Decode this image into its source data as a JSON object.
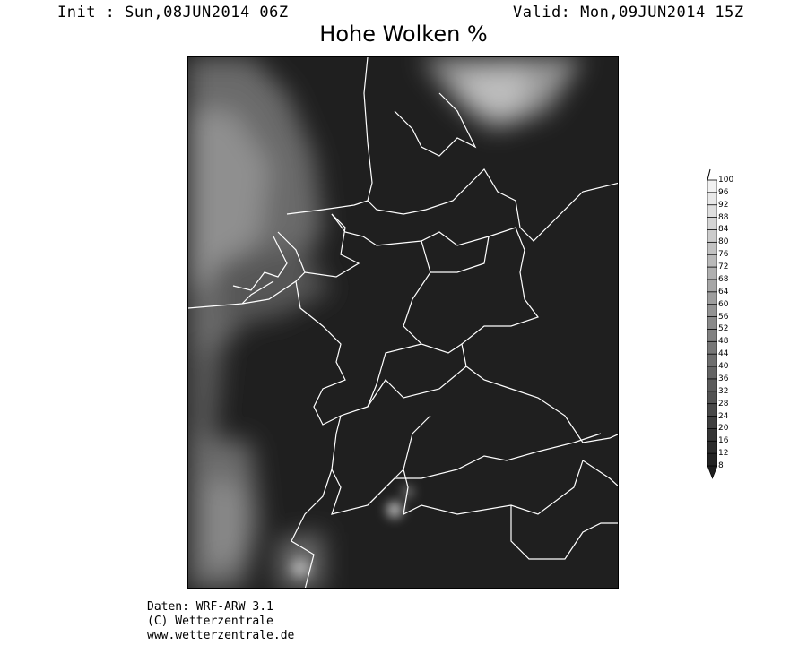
{
  "header": {
    "init": "Init : Sun,08JUN2014 06Z",
    "valid": "Valid: Mon,09JUN2014 15Z",
    "title": "Hohe Wolken %"
  },
  "legend": {
    "levels": [
      100,
      96,
      92,
      88,
      84,
      80,
      76,
      72,
      68,
      64,
      60,
      56,
      52,
      48,
      44,
      40,
      36,
      32,
      28,
      24,
      20,
      16,
      12,
      8
    ],
    "color_low": "#1e1e1e",
    "color_high": "#f6f6f6"
  },
  "map": {
    "background": "#1f1f1f",
    "border_color": "#ffffff"
  },
  "credits": {
    "line1": "Daten: WRF-ARW 3.1",
    "line2": "(C) Wetterzentrale",
    "line3": "www.wetterzentrale.de"
  }
}
